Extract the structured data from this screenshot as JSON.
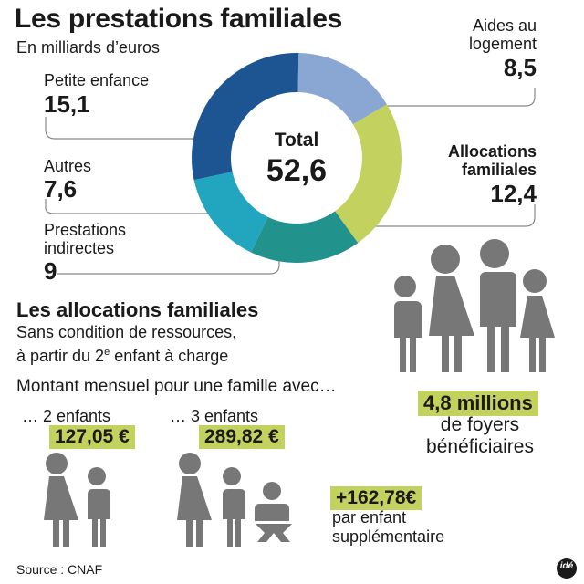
{
  "title": "Les prestations familiales",
  "subtitle": "En milliards d’euros",
  "chart_data": {
    "type": "pie",
    "donut": true,
    "title": "Les prestations familiales",
    "unit": "En milliards d’euros",
    "center_label": "Total",
    "total_text": "52,6",
    "total": 52.6,
    "slices": [
      {
        "label": "Aides au logement",
        "value": 8.5,
        "value_text": "8,5",
        "color": "#8aa6d3"
      },
      {
        "label": "Allocations familiales",
        "value": 12.4,
        "value_text": "12,4",
        "color": "#c3d15e"
      },
      {
        "label": "Prestations indirectes",
        "value": 9,
        "value_text": "9",
        "color": "#21928c"
      },
      {
        "label": "Autres",
        "value": 7.6,
        "value_text": "7,6",
        "color": "#22a6c0"
      },
      {
        "label": "Petite enfance",
        "value": 15.1,
        "value_text": "15,1",
        "color": "#1c5592"
      }
    ]
  },
  "labels": {
    "aides_l1": "Aides au",
    "aides_l2": "logement",
    "alloc_l1": "Allocations",
    "alloc_l2": "familiales",
    "prest_l1": "Prestations",
    "prest_l2": "indirectes"
  },
  "section": {
    "title": "Les allocations familiales",
    "line1": "Sans condition de ressources,",
    "line2_pre": "à partir du 2",
    "line2_sup": "e",
    "line2_post": " enfant à charge",
    "montant": "Montant mensuel pour une famille avec…",
    "two_children": "… 2 enfants",
    "two_amount": "127,05 €",
    "three_children": "… 3 enfants",
    "three_amount": "289,82 €",
    "extra_amount": "+162,78€",
    "extra_l1": "par enfant",
    "extra_l2": "supplémentaire",
    "households_value": "4,8 millions",
    "households_l1": "de foyers",
    "households_l2": "bénéficiaires"
  },
  "source": "Source : CNAF",
  "logo": "idé",
  "colors": {
    "figure": "#777777",
    "highlight": "#c3d15e",
    "leader": "#888888"
  }
}
